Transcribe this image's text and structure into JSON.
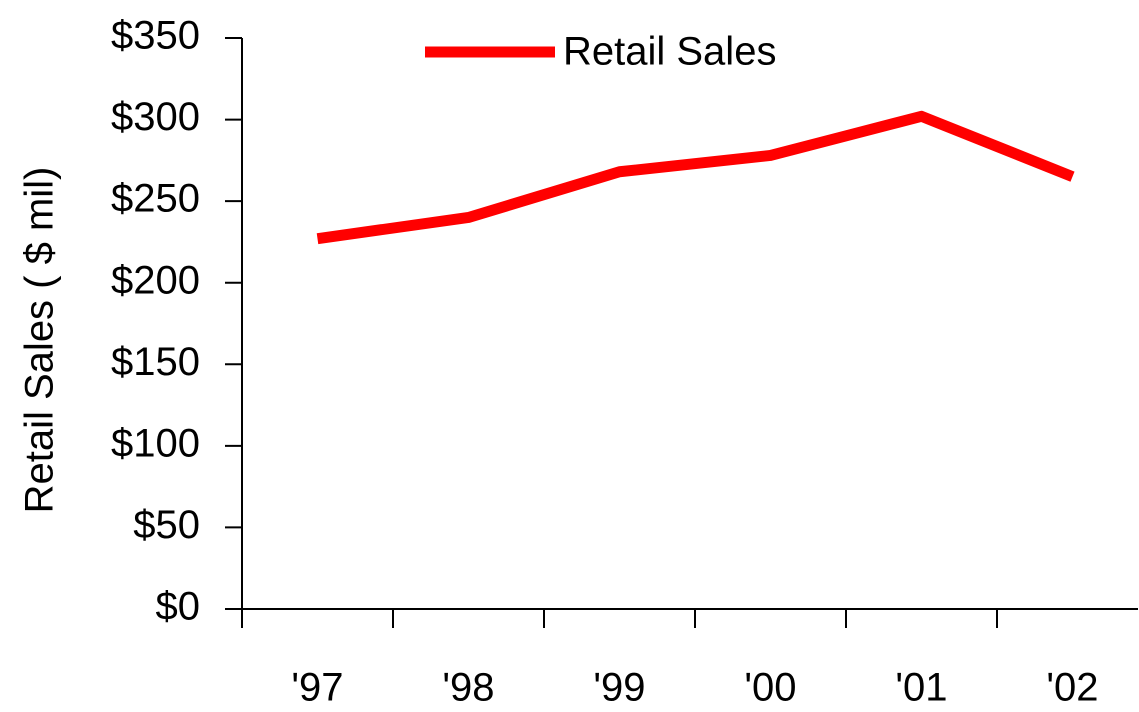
{
  "chart_data": {
    "type": "line",
    "y_axis_label": "Retail Sales ( $ mil)",
    "categories": [
      "'97",
      "'98",
      "'99",
      "'00",
      "'01",
      "'02"
    ],
    "series": [
      {
        "name": "Retail Sales",
        "color": "#ff0000",
        "values": [
          227,
          240,
          268,
          278,
          302,
          265
        ]
      }
    ],
    "ylim": [
      0,
      350
    ],
    "yticks": [
      {
        "value": 0,
        "label": "$0"
      },
      {
        "value": 50,
        "label": "$50"
      },
      {
        "value": 100,
        "label": "$100"
      },
      {
        "value": 150,
        "label": "$150"
      },
      {
        "value": 200,
        "label": "$200"
      },
      {
        "value": 250,
        "label": "$250"
      },
      {
        "value": 300,
        "label": "$300"
      },
      {
        "value": 350,
        "label": "$350"
      }
    ],
    "grid": false,
    "legend": "top"
  }
}
